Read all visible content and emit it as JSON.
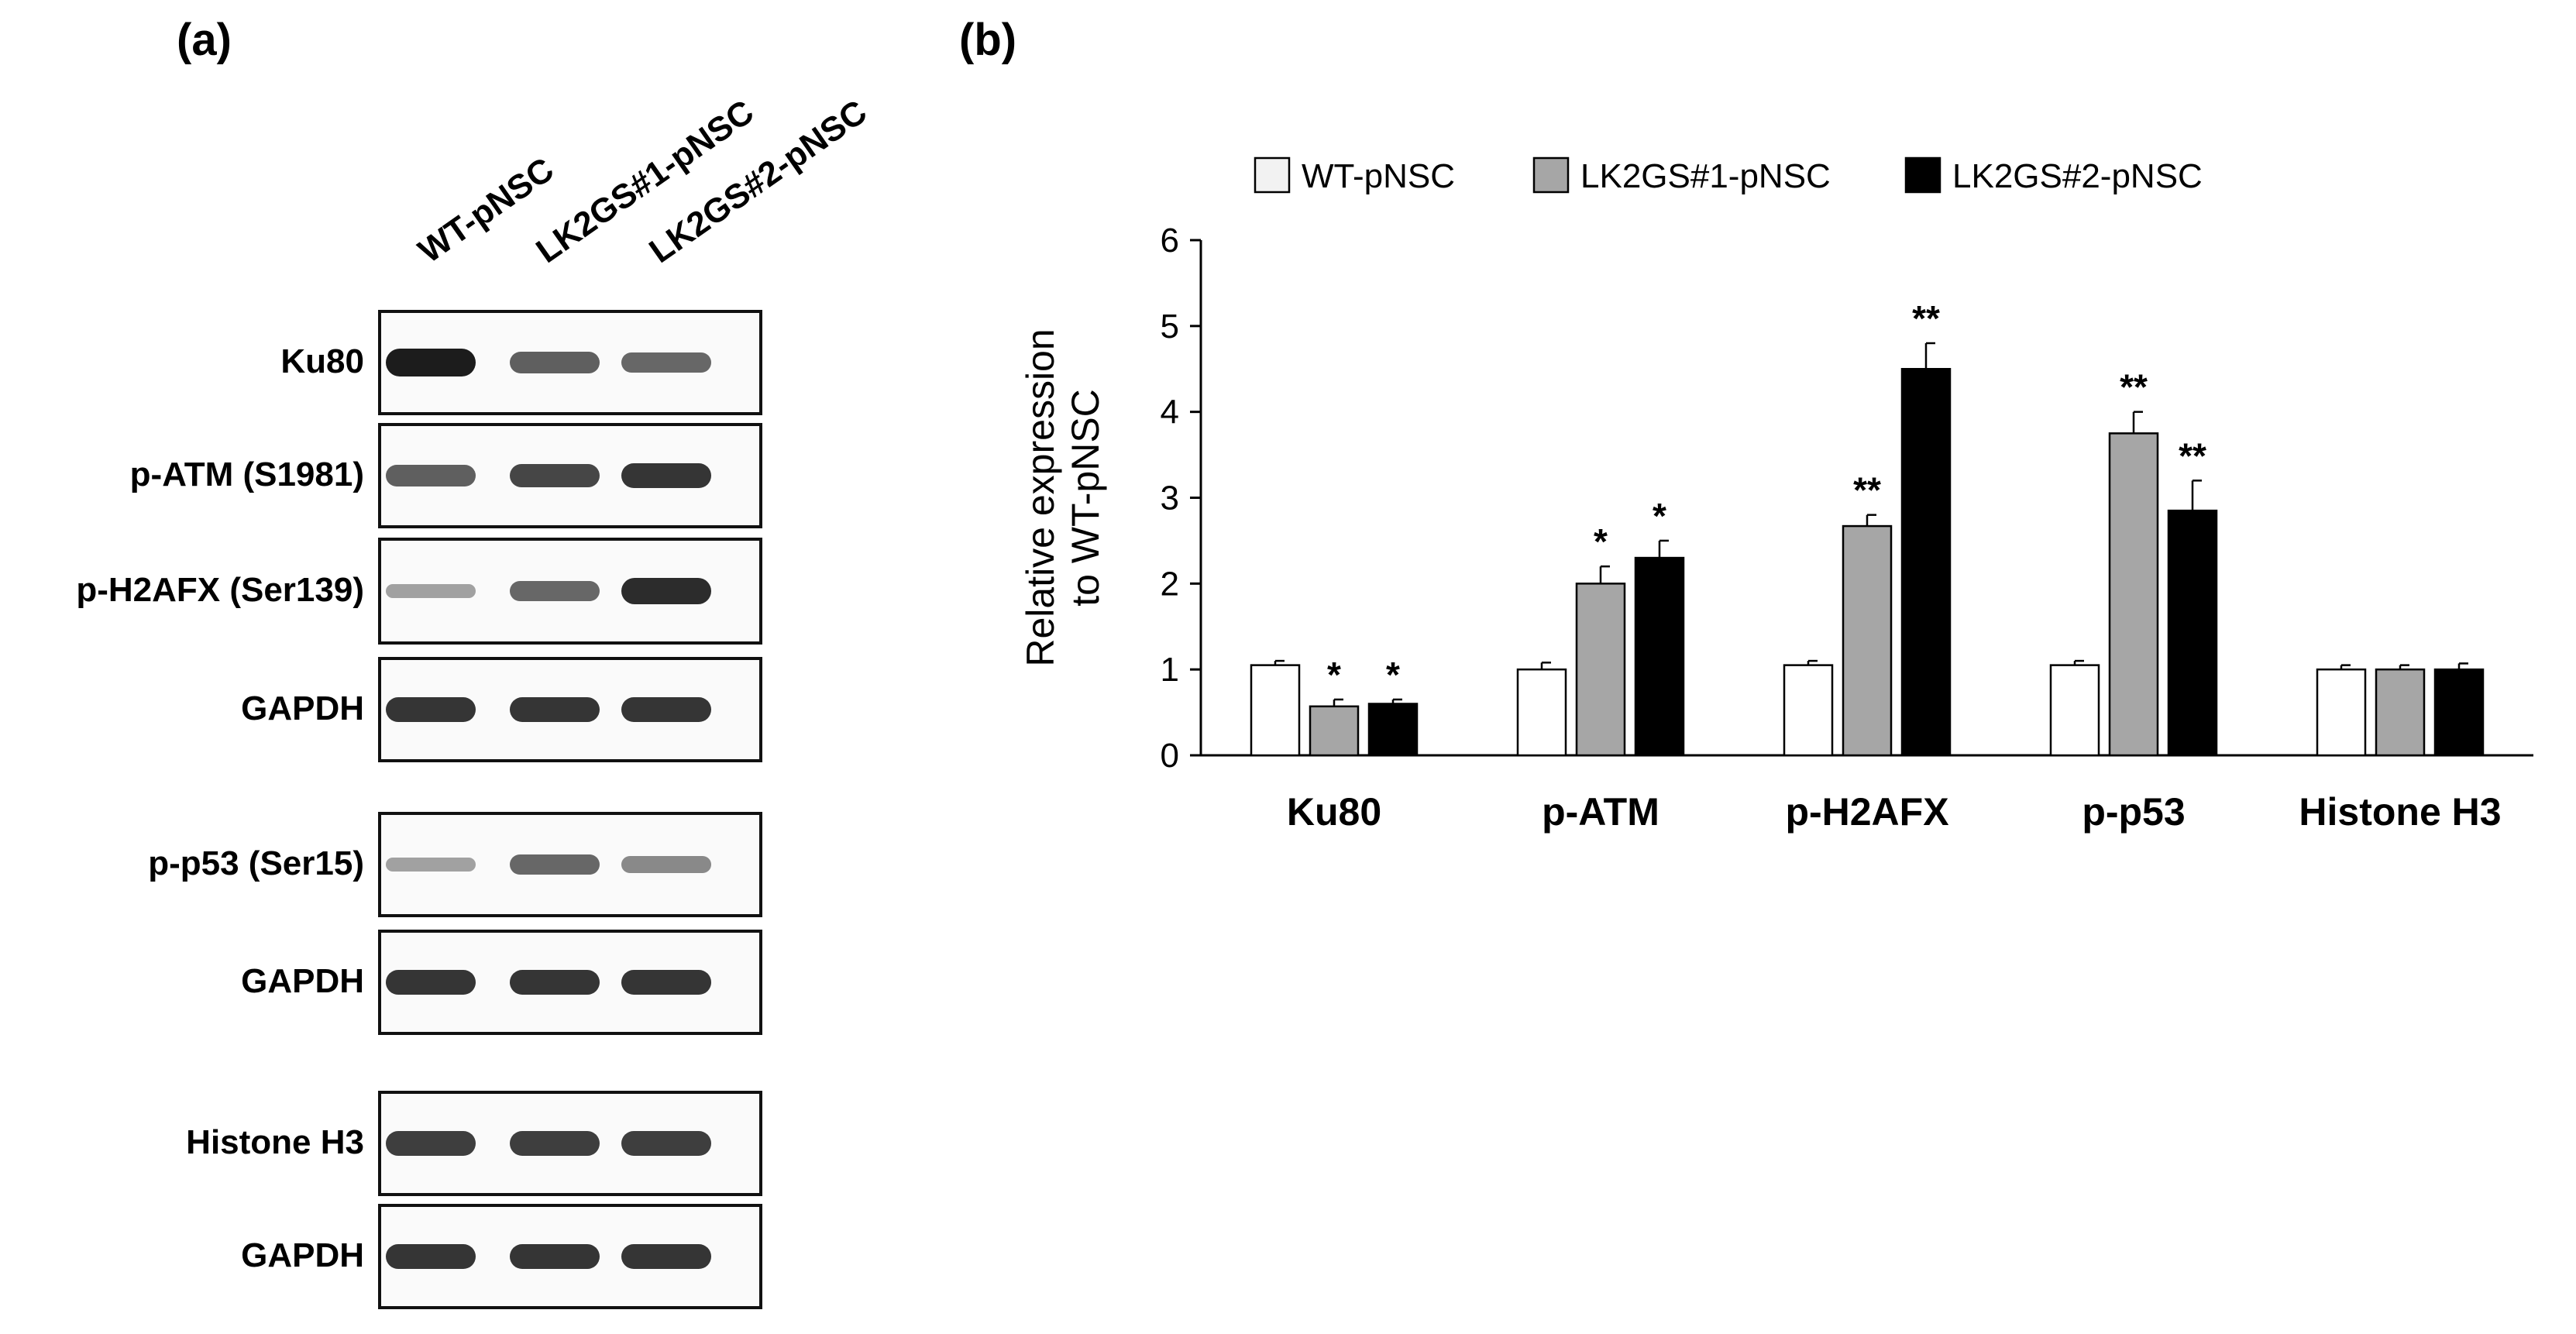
{
  "panel_a": {
    "label": "(a)",
    "lanes": [
      "WT-pNSC",
      "LK2GS#1-pNSC",
      "LK2GS#2-pNSC"
    ],
    "blots": [
      {
        "name": "Ku80",
        "band_intensity": [
          1.0,
          0.6,
          0.55
        ]
      },
      {
        "name": "p-ATM (S1981)",
        "band_intensity": [
          0.6,
          0.75,
          0.85
        ]
      },
      {
        "name": "p-H2AFX (Ser139)",
        "band_intensity": [
          0.2,
          0.55,
          0.9
        ]
      },
      {
        "name": "GAPDH",
        "band_intensity": [
          0.85,
          0.85,
          0.85
        ]
      },
      {
        "name": "p-p53 (Ser15)",
        "band_intensity": [
          0.2,
          0.55,
          0.35
        ]
      },
      {
        "name": "GAPDH",
        "band_intensity": [
          0.85,
          0.85,
          0.85
        ]
      },
      {
        "name": "Histone H3",
        "band_intensity": [
          0.8,
          0.8,
          0.8
        ]
      },
      {
        "name": "GAPDH",
        "band_intensity": [
          0.85,
          0.85,
          0.85
        ]
      }
    ]
  },
  "panel_b": {
    "label": "(b)"
  },
  "chart_data": {
    "type": "bar",
    "title": "",
    "xlabel": "",
    "ylabel": "Relative expression to WT-pNSC",
    "ylim": [
      0,
      6
    ],
    "yticks": [
      "0",
      "1",
      "2",
      "3",
      "4",
      "5",
      "6"
    ],
    "categories": [
      "Ku80",
      "p-ATM",
      "p-H2AFX",
      "p-p53",
      "Histone H3"
    ],
    "legend_position": "top",
    "series": [
      {
        "name": "WT-pNSC",
        "color": "#ffffff",
        "values": [
          1.05,
          1.0,
          1.05,
          1.05,
          1.0
        ],
        "errors": [
          0.05,
          0.08,
          0.05,
          0.05,
          0.05
        ],
        "significance": [
          "",
          "",
          "",
          "",
          ""
        ]
      },
      {
        "name": "LK2GS#1-pNSC",
        "color": "#a6a6a6",
        "values": [
          0.57,
          2.0,
          2.67,
          3.75,
          1.0
        ],
        "errors": [
          0.08,
          0.2,
          0.13,
          0.25,
          0.05
        ],
        "significance": [
          "*",
          "*",
          "**",
          "**",
          ""
        ]
      },
      {
        "name": "LK2GS#2-pNSC",
        "color": "#000000",
        "values": [
          0.6,
          2.3,
          4.5,
          2.85,
          1.0
        ],
        "errors": [
          0.05,
          0.2,
          0.3,
          0.35,
          0.07
        ],
        "significance": [
          "*",
          "*",
          "**",
          "**",
          ""
        ]
      }
    ]
  }
}
